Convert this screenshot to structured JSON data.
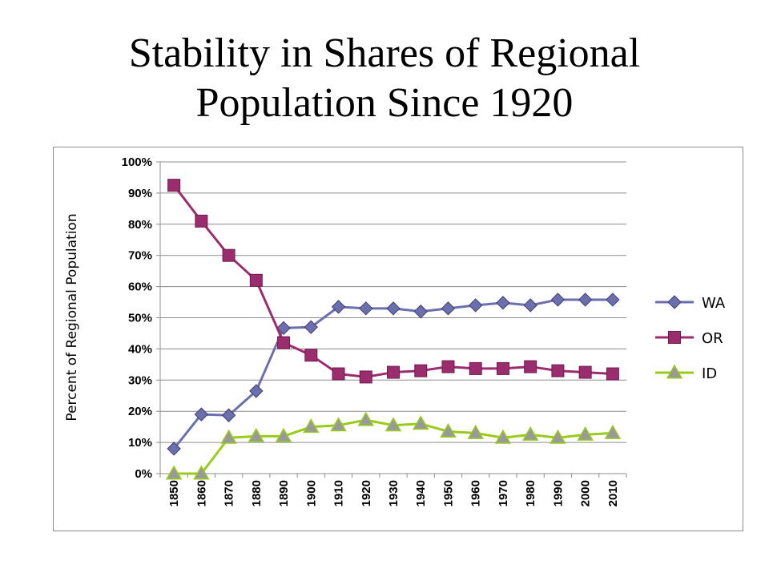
{
  "slide": {
    "title_line1": "Stability in Shares of Regional",
    "title_line2": "Population Since 1920"
  },
  "chart_data": {
    "type": "line",
    "title": "",
    "xlabel": "",
    "ylabel": "Percent of Regional Population",
    "ylim": [
      0,
      1
    ],
    "grid": true,
    "legend_position": "right",
    "categories": [
      "1850",
      "1860",
      "1870",
      "1880",
      "1890",
      "1900",
      "1910",
      "1920",
      "1930",
      "1940",
      "1950",
      "1960",
      "1970",
      "1980",
      "1990",
      "2000",
      "2010"
    ],
    "y_ticks": [
      0,
      0.1,
      0.2,
      0.3,
      0.4,
      0.5,
      0.6,
      0.7,
      0.8,
      0.9,
      1.0
    ],
    "y_tick_labels": [
      "0%",
      "10%",
      "20%",
      "30%",
      "40%",
      "50%",
      "60%",
      "70%",
      "80%",
      "90%",
      "100%"
    ],
    "series": [
      {
        "name": "WA",
        "color": "#6b6fad",
        "marker": "diamond",
        "values": [
          0.08,
          0.19,
          0.187,
          0.265,
          0.467,
          0.47,
          0.535,
          0.53,
          0.53,
          0.52,
          0.53,
          0.54,
          0.548,
          0.54,
          0.558,
          0.558,
          0.558
        ]
      },
      {
        "name": "OR",
        "color": "#9b2d6e",
        "marker": "square",
        "values": [
          0.925,
          0.81,
          0.7,
          0.62,
          0.42,
          0.38,
          0.32,
          0.31,
          0.325,
          0.33,
          0.343,
          0.337,
          0.337,
          0.343,
          0.33,
          0.325,
          0.32
        ]
      },
      {
        "name": "ID",
        "color": "#99cc1a",
        "marker": "triangle",
        "values": [
          0.0,
          0.0,
          0.115,
          0.12,
          0.12,
          0.15,
          0.155,
          0.172,
          0.155,
          0.16,
          0.135,
          0.13,
          0.115,
          0.125,
          0.115,
          0.125,
          0.13
        ]
      }
    ]
  }
}
